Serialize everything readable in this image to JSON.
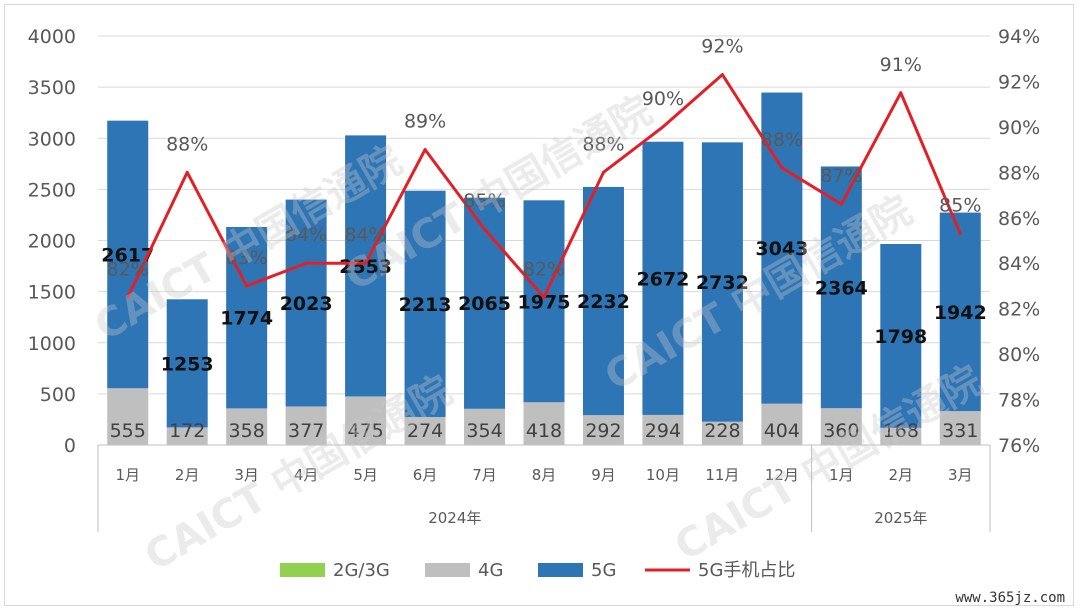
{
  "chart_data": {
    "type": "bar",
    "stacked": true,
    "categories": [
      "1月",
      "2月",
      "3月",
      "4月",
      "5月",
      "6月",
      "7月",
      "8月",
      "9月",
      "10月",
      "11月",
      "12月",
      "1月",
      "2月",
      "3月"
    ],
    "year_groups": [
      {
        "label": "2024年",
        "count": 12
      },
      {
        "label": "2025年",
        "count": 3
      }
    ],
    "series": [
      {
        "name": "2G/3G",
        "color": "#92d050",
        "values": [
          0,
          0,
          0,
          0,
          0,
          0,
          0,
          0,
          0,
          0,
          0,
          0,
          0,
          0,
          0
        ]
      },
      {
        "name": "4G",
        "color": "#bfbfbf",
        "values": [
          555,
          172,
          358,
          377,
          475,
          274,
          354,
          418,
          292,
          294,
          228,
          404,
          360,
          168,
          331
        ]
      },
      {
        "name": "5G",
        "color": "#2e75b6",
        "values": [
          2617,
          1253,
          1774,
          2023,
          2553,
          2213,
          2065,
          1975,
          2232,
          2672,
          2732,
          3043,
          2364,
          1798,
          1942
        ]
      }
    ],
    "line_series": {
      "name": "5G手机占比",
      "color": "#e31f26",
      "values": [
        82.5,
        88,
        83,
        84,
        84,
        89,
        85.5,
        82.5,
        88,
        90,
        92.3,
        88.2,
        86.6,
        91.5,
        85.3
      ],
      "labels": [
        "82%",
        "88%",
        "83%",
        "84%",
        "84%",
        "89%",
        "85%",
        "82%",
        "88%",
        "90%",
        "92%",
        "88%",
        "87%",
        "91%",
        "85%"
      ]
    },
    "y_left": {
      "min": 0,
      "max": 4000,
      "ticks": [
        "0",
        "500",
        "1000",
        "1500",
        "2000",
        "2500",
        "3000",
        "3500",
        "4000"
      ]
    },
    "y_right": {
      "min": 76,
      "max": 94,
      "ticks": [
        "76%",
        "78%",
        "80%",
        "82%",
        "84%",
        "86%",
        "88%",
        "90%",
        "92%",
        "94%"
      ]
    },
    "legend": {
      "position": "bottom",
      "items": [
        "2G/3G",
        "4G",
        "5G",
        "5G手机占比"
      ]
    },
    "watermark": "CAICT 中国信通院",
    "site_label": "www.365jz.com"
  }
}
